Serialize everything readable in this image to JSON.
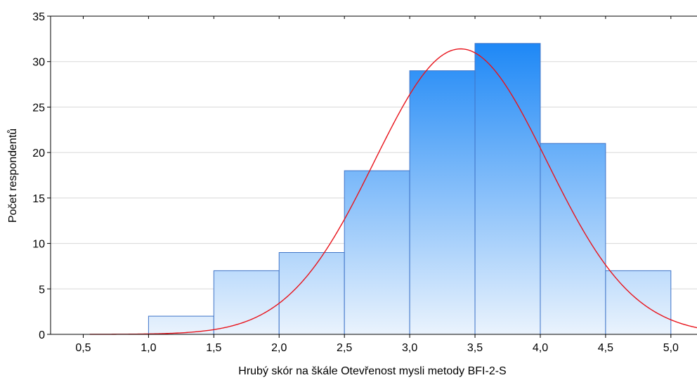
{
  "chart_data": {
    "type": "bar",
    "subtype": "histogram",
    "title": "",
    "xlabel": "Hrubý skór na škále Otevřenost mysli metody BFI-2-S",
    "ylabel": "Počet respondentů",
    "xlim": [
      0.25,
      5.2
    ],
    "ylim": [
      0,
      35
    ],
    "x_ticks": [
      "0,5",
      "1,0",
      "1,5",
      "2,0",
      "2,5",
      "3,0",
      "3,5",
      "4,0",
      "4,5",
      "5,0"
    ],
    "x_tick_values": [
      0.5,
      1.0,
      1.5,
      2.0,
      2.5,
      3.0,
      3.5,
      4.0,
      4.5,
      5.0
    ],
    "y_ticks": [
      "0",
      "5",
      "10",
      "15",
      "20",
      "25",
      "30",
      "35"
    ],
    "y_tick_values": [
      0,
      5,
      10,
      15,
      20,
      25,
      30,
      35
    ],
    "bins": [
      {
        "from": 1.0,
        "to": 1.5,
        "count": 2
      },
      {
        "from": 1.5,
        "to": 2.0,
        "count": 7
      },
      {
        "from": 2.0,
        "to": 2.5,
        "count": 9
      },
      {
        "from": 2.5,
        "to": 3.0,
        "count": 18
      },
      {
        "from": 3.0,
        "to": 3.5,
        "count": 29
      },
      {
        "from": 3.5,
        "to": 4.0,
        "count": 32
      },
      {
        "from": 4.0,
        "to": 4.5,
        "count": 21
      },
      {
        "from": 4.5,
        "to": 5.0,
        "count": 7
      }
    ],
    "normal_curve": {
      "mean": 3.39,
      "sd": 0.66,
      "peak": 31.4
    },
    "grid": {
      "horizontal": true,
      "vertical": false
    },
    "legend": "none",
    "colors": {
      "bar_top": "#1e88f6",
      "bar_bottom": "#eaf3fd",
      "bar_edge": "#3f74c8",
      "curve": "#e8141c",
      "grid": "#d8d8d8",
      "axis": "#000000"
    }
  }
}
